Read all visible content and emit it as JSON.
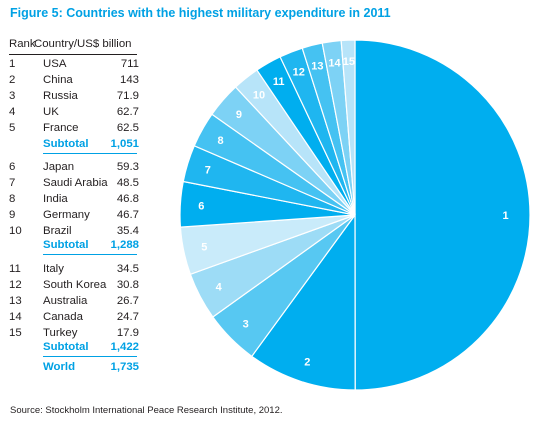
{
  "title": "Figure 5: Countries with the highest military expenditure in 2011",
  "table": {
    "rank_header": "Rank",
    "country_header": "Country/US$ billion",
    "groups": [
      {
        "rows": [
          {
            "rank": "1",
            "country": "USA",
            "value": "711"
          },
          {
            "rank": "2",
            "country": "China",
            "value": "143"
          },
          {
            "rank": "3",
            "country": "Russia",
            "value": "71.9"
          },
          {
            "rank": "4",
            "country": "UK",
            "value": "62.7"
          },
          {
            "rank": "5",
            "country": "France",
            "value": "62.5"
          }
        ],
        "subtotal_label": "Subtotal",
        "subtotal_value": "1,051"
      },
      {
        "rows": [
          {
            "rank": "6",
            "country": "Japan",
            "value": "59.3"
          },
          {
            "rank": "7",
            "country": "Saudi Arabia",
            "value": "48.5"
          },
          {
            "rank": "8",
            "country": "India",
            "value": "46.8"
          },
          {
            "rank": "9",
            "country": "Germany",
            "value": "46.7"
          },
          {
            "rank": "10",
            "country": "Brazil",
            "value": "35.4"
          }
        ],
        "subtotal_label": "Subtotal",
        "subtotal_value": "1,288"
      },
      {
        "rows": [
          {
            "rank": "11",
            "country": "Italy",
            "value": "34.5"
          },
          {
            "rank": "12",
            "country": "South Korea",
            "value": "30.8"
          },
          {
            "rank": "13",
            "country": "Australia",
            "value": "26.7"
          },
          {
            "rank": "14",
            "country": "Canada",
            "value": "24.7"
          },
          {
            "rank": "15",
            "country": "Turkey",
            "value": "17.9"
          }
        ],
        "subtotal_label": "Subtotal",
        "subtotal_value": "1,422"
      }
    ],
    "world_label": "World",
    "world_value": "1,735"
  },
  "chart_data": {
    "type": "pie",
    "title": "Figure 5: Countries with the highest military expenditure in 2011",
    "slices": [
      {
        "label": "1",
        "country": "USA",
        "value": 711,
        "color": "#00aeef"
      },
      {
        "label": "2",
        "country": "China",
        "value": 143,
        "color": "#00aeef"
      },
      {
        "label": "3",
        "country": "Russia",
        "value": 71.9,
        "color": "#57c8f2"
      },
      {
        "label": "4",
        "country": "UK",
        "value": 62.7,
        "color": "#9ddcf6"
      },
      {
        "label": "5",
        "country": "France",
        "value": 62.5,
        "color": "#c9ebfa"
      },
      {
        "label": "6",
        "country": "Japan",
        "value": 59.3,
        "color": "#00aeef"
      },
      {
        "label": "7",
        "country": "Saudi Arabia",
        "value": 48.5,
        "color": "#1fb6f0"
      },
      {
        "label": "8",
        "country": "India",
        "value": 46.8,
        "color": "#45c2f2"
      },
      {
        "label": "9",
        "country": "Germany",
        "value": 46.7,
        "color": "#7dd2f5"
      },
      {
        "label": "10",
        "country": "Brazil",
        "value": 35.4,
        "color": "#b7e4f9"
      },
      {
        "label": "11",
        "country": "Italy",
        "value": 34.5,
        "color": "#00aeef"
      },
      {
        "label": "12",
        "country": "South Korea",
        "value": 30.8,
        "color": "#1fb6f0"
      },
      {
        "label": "13",
        "country": "Australia",
        "value": 26.7,
        "color": "#45c2f2"
      },
      {
        "label": "14",
        "country": "Canada",
        "value": 24.7,
        "color": "#7dd2f5"
      },
      {
        "label": "15",
        "country": "Turkey",
        "value": 17.9,
        "color": "#b7e4f9"
      }
    ],
    "world_total": 1735,
    "legend": "none"
  },
  "source": "Source: Stockholm International Peace Research Institute, 2012."
}
